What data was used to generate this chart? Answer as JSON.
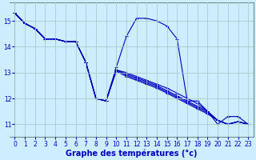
{
  "xlabel": "Graphe des températures (°c)",
  "background_color": "#cceeff",
  "line_color": "#0000bb",
  "grid_color": "#aacccc",
  "xlim": [
    -0.5,
    23.5
  ],
  "ylim": [
    10.5,
    15.7
  ],
  "yticks": [
    11,
    12,
    13,
    14,
    15
  ],
  "xticks": [
    0,
    1,
    2,
    3,
    4,
    5,
    6,
    7,
    8,
    9,
    10,
    11,
    12,
    13,
    14,
    15,
    16,
    17,
    18,
    19,
    20,
    21,
    22,
    23
  ],
  "series_main": [
    15.3,
    14.9,
    14.7,
    14.3,
    14.3,
    14.2,
    14.2,
    13.4,
    12.0,
    11.9,
    13.2,
    14.4,
    15.1,
    15.1,
    15.0,
    14.8,
    14.3,
    11.9,
    11.9,
    11.5,
    11.0,
    11.3,
    11.3,
    11.0
  ],
  "series_diag": [
    [
      15.3,
      14.9,
      14.7,
      14.3,
      14.3,
      14.2,
      14.2,
      13.4,
      12.0,
      11.9,
      13.1,
      13.0,
      12.85,
      12.7,
      12.55,
      12.4,
      12.2,
      12.0,
      11.8,
      11.5,
      11.15,
      11.0,
      11.1,
      11.0
    ],
    [
      15.3,
      14.9,
      14.7,
      14.3,
      14.3,
      14.2,
      14.2,
      13.4,
      12.0,
      11.9,
      13.1,
      12.95,
      12.8,
      12.65,
      12.5,
      12.3,
      12.1,
      11.9,
      11.7,
      11.5,
      11.15,
      11.0,
      11.1,
      11.0
    ],
    [
      15.3,
      14.9,
      14.7,
      14.3,
      14.3,
      14.2,
      14.2,
      13.4,
      12.0,
      11.9,
      13.1,
      12.9,
      12.75,
      12.6,
      12.45,
      12.25,
      12.05,
      11.85,
      11.65,
      11.45,
      11.15,
      11.0,
      11.1,
      11.0
    ],
    [
      15.3,
      14.9,
      14.7,
      14.3,
      14.3,
      14.2,
      14.2,
      13.4,
      12.0,
      11.9,
      13.05,
      12.85,
      12.7,
      12.55,
      12.4,
      12.2,
      12.0,
      11.8,
      11.6,
      11.4,
      11.15,
      11.0,
      11.1,
      11.0
    ]
  ],
  "marker": "+",
  "markersize": 3,
  "linewidth": 0.8,
  "tick_fontsize": 5.5,
  "xlabel_fontsize": 7.0
}
